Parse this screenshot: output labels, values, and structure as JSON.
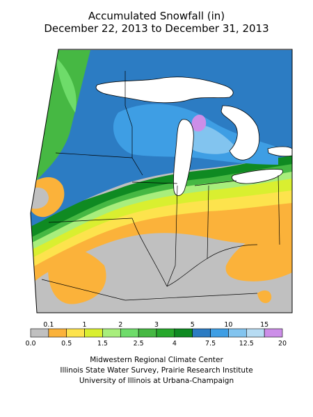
{
  "title": {
    "line1": "Accumulated Snowfall (in)",
    "line2": "December 22, 2013 to December 31, 2013"
  },
  "colors": {
    "c0": "#c0c0c0",
    "c01": "#fbb23a",
    "c05": "#fde34d",
    "c1": "#d9ef30",
    "c15": "#a8ee7c",
    "c2": "#6edc6a",
    "c25": "#46b843",
    "c3": "#27a82c",
    "c4": "#0f8a22",
    "c5": "#2c7cc3",
    "c75": "#3e9ee4",
    "c10": "#82c4ef",
    "c125": "#b7dcf3",
    "c15p": "#cc8ee8",
    "water": "#ffffff",
    "border": "#000000"
  },
  "legend": {
    "top_labels": [
      "0.1",
      "1",
      "2",
      "3",
      "5",
      "10",
      "15"
    ],
    "bottom_labels": [
      "0.0",
      "0.5",
      "1.5",
      "2.5",
      "4",
      "7.5",
      "12.5",
      "20"
    ],
    "swatch_colors": [
      "#c0c0c0",
      "#fbb23a",
      "#fde34d",
      "#d9ef30",
      "#a8ee7c",
      "#6edc6a",
      "#46b843",
      "#27a82c",
      "#0f8a22",
      "#2c7cc3",
      "#3e9ee4",
      "#82c4ef",
      "#b7dcf3",
      "#cc8ee8"
    ]
  },
  "credits": {
    "line1": "Midwestern Regional Climate Center",
    "line2": "Illinois State Water Survey, Prairie Research Institute",
    "line3": "University of Illinois at Urbana-Champaign"
  }
}
